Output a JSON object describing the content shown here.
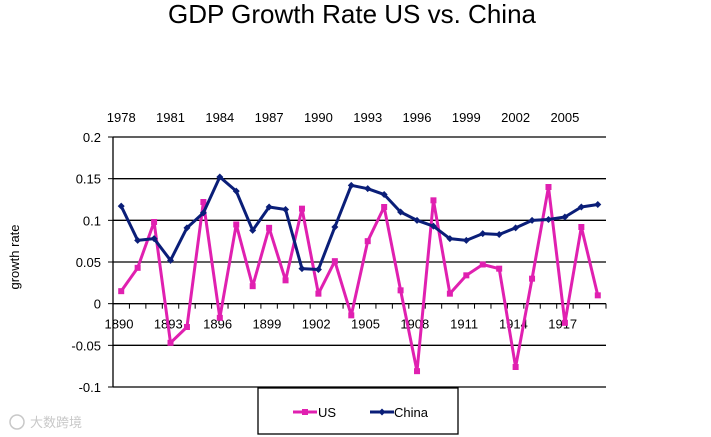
{
  "chart_data": {
    "type": "line",
    "title": "GDP Growth Rate US vs. China",
    "ylabel": "growth rate",
    "ylim": [
      -0.1,
      0.2
    ],
    "y_ticks": [
      "0.2",
      "0.15",
      "0.1",
      "0.05",
      "0",
      "-0.05",
      "-0.1"
    ],
    "grid": true,
    "legend_position": "bottom",
    "bottom_axis_ticks": [
      "1890",
      "1893",
      "1896",
      "1899",
      "1902",
      "1905",
      "1908",
      "1911",
      "1914",
      "1917"
    ],
    "top_axis_ticks": [
      "1978",
      "1981",
      "1984",
      "1987",
      "1990",
      "1993",
      "1996",
      "1999",
      "2002",
      "2005"
    ],
    "series": [
      {
        "name": "US",
        "color": "#e020b0",
        "marker": "square",
        "x": [
          1890,
          1891,
          1892,
          1893,
          1894,
          1895,
          1896,
          1897,
          1898,
          1899,
          1900,
          1901,
          1902,
          1903,
          1904,
          1905,
          1906,
          1907,
          1908,
          1909,
          1910,
          1911,
          1912,
          1913,
          1914,
          1915,
          1916,
          1917,
          1918,
          1919
        ],
        "values": [
          0.015,
          0.043,
          0.098,
          -0.047,
          -0.028,
          0.122,
          -0.017,
          0.095,
          0.021,
          0.091,
          0.028,
          0.114,
          0.012,
          0.051,
          -0.014,
          0.075,
          0.116,
          0.016,
          -0.081,
          0.124,
          0.012,
          0.034,
          0.047,
          0.042,
          -0.076,
          0.03,
          0.14,
          -0.023,
          0.092,
          0.01
        ]
      },
      {
        "name": "China",
        "color": "#0a1e78",
        "marker": "diamond",
        "x": [
          1978,
          1979,
          1980,
          1981,
          1982,
          1983,
          1984,
          1985,
          1986,
          1987,
          1988,
          1989,
          1990,
          1991,
          1992,
          1993,
          1994,
          1995,
          1996,
          1997,
          1998,
          1999,
          2000,
          2001,
          2002,
          2003,
          2004,
          2005,
          2006,
          2007
        ],
        "values": [
          0.117,
          0.076,
          0.078,
          0.052,
          0.091,
          0.109,
          0.152,
          0.135,
          0.088,
          0.116,
          0.113,
          0.042,
          0.041,
          0.092,
          0.142,
          0.138,
          0.131,
          0.11,
          0.1,
          0.093,
          0.078,
          0.076,
          0.084,
          0.083,
          0.091,
          0.1,
          0.101,
          0.104,
          0.116,
          0.119
        ]
      }
    ]
  },
  "watermark": "大数跨境"
}
